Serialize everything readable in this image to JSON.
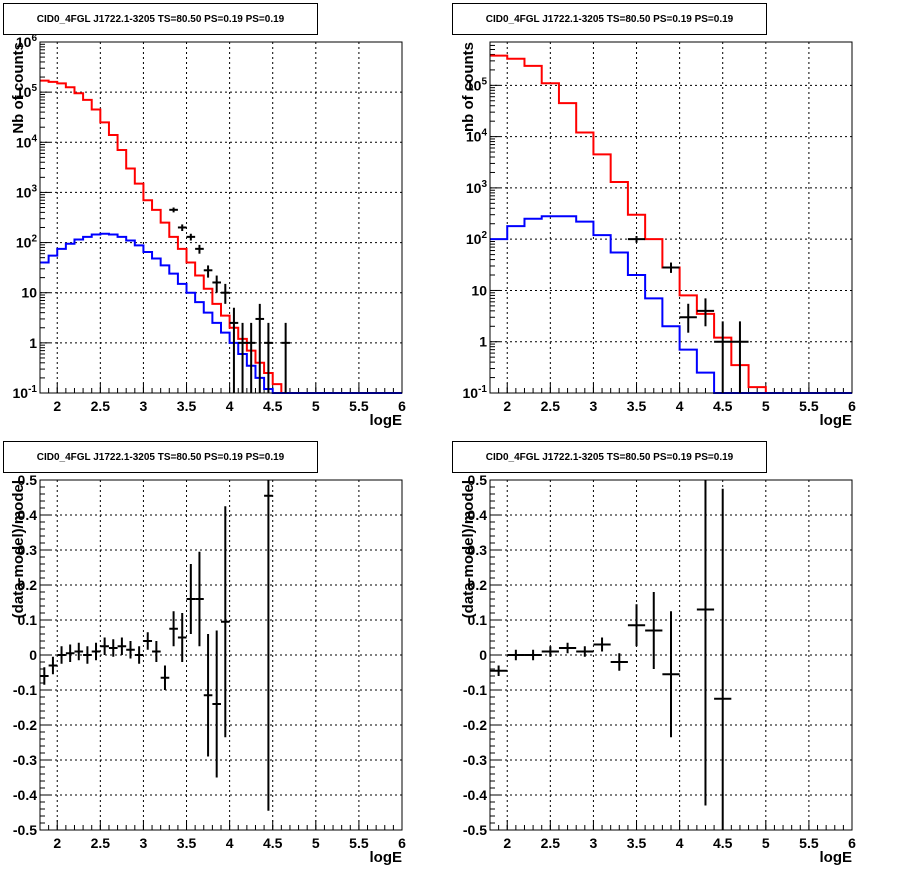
{
  "chart_data": [
    {
      "type": "line",
      "title": "CID0_4FGL J1722.1-3205 TS=80.50 PS=0.19 PS=0.19",
      "xlabel": "logE",
      "ylabel": "Nb of counts",
      "xlim": [
        1.8,
        6
      ],
      "ylim": [
        0.1,
        1000000
      ],
      "yscale": "log",
      "grid": true,
      "x_ticks": [
        "2",
        "2.5",
        "3",
        "3.5",
        "4",
        "4.5",
        "5",
        "5.5",
        "6"
      ],
      "y_ticks": [
        "10^-1",
        "1",
        "10",
        "10^2",
        "10^3",
        "10^4",
        "10^5",
        "10^6"
      ],
      "bin_width": 0.1,
      "series": [
        {
          "color": "#ff0000",
          "x": [
            1.8,
            1.9,
            2.0,
            2.1,
            2.2,
            2.3,
            2.4,
            2.5,
            2.6,
            2.7,
            2.8,
            2.9,
            3.0,
            3.1,
            3.2,
            3.3,
            3.4,
            3.5,
            3.6,
            3.7,
            3.8,
            3.9,
            4.0,
            4.1,
            4.2,
            4.3,
            4.4,
            4.5,
            4.6,
            4.7,
            4.8,
            4.9,
            5.0,
            5.1,
            5.2,
            5.3,
            5.4,
            5.5,
            5.6,
            5.7,
            5.8,
            5.9
          ],
          "values": [
            170000,
            160000,
            150000,
            125000,
            95000,
            70000,
            45000,
            25000,
            14000,
            7000,
            3000,
            1500,
            700,
            450,
            250,
            130,
            75,
            40,
            22,
            12,
            6,
            3.5,
            2,
            1.2,
            0.7,
            0.4,
            0.25,
            0.15,
            0.1,
            0.1,
            0.1,
            0.1,
            0.1,
            0.1,
            0.1,
            0.1,
            0.1,
            0.1,
            0.1,
            0.1,
            0.1,
            0.1
          ]
        },
        {
          "color": "#0000ff",
          "x": [
            1.8,
            1.9,
            2.0,
            2.1,
            2.2,
            2.3,
            2.4,
            2.5,
            2.6,
            2.7,
            2.8,
            2.9,
            3.0,
            3.1,
            3.2,
            3.3,
            3.4,
            3.5,
            3.6,
            3.7,
            3.8,
            3.9,
            4.0,
            4.1,
            4.2,
            4.3,
            4.4,
            4.5,
            4.6,
            4.7,
            4.8,
            4.9,
            5.0,
            5.1,
            5.2,
            5.3,
            5.4,
            5.5,
            5.6,
            5.7,
            5.8,
            5.9
          ],
          "values": [
            40,
            55,
            75,
            95,
            115,
            130,
            145,
            150,
            145,
            130,
            110,
            88,
            65,
            48,
            35,
            24,
            15,
            10,
            6.5,
            4,
            2.5,
            1.6,
            1,
            0.6,
            0.35,
            0.2,
            0.12,
            0.1,
            0.1,
            0.1,
            0.1,
            0.1,
            0.1,
            0.1,
            0.1,
            0.1,
            0.1,
            0.1,
            0.1,
            0.1,
            0.1,
            0.1
          ]
        },
        {
          "type": "errorbar",
          "color": "#000000",
          "x": [
            3.35,
            3.45,
            3.55,
            3.65,
            3.75,
            3.85,
            3.95,
            4.05,
            4.15,
            4.25,
            4.35,
            4.45,
            4.65
          ],
          "values": [
            450,
            200,
            130,
            75,
            28,
            16,
            10,
            2.5,
            1,
            1,
            3,
            1,
            1
          ],
          "err_low": [
            400,
            170,
            110,
            60,
            20,
            10,
            6,
            0.1,
            0.1,
            0.1,
            0.1,
            0.1,
            0.1
          ],
          "err_high": [
            500,
            230,
            150,
            90,
            35,
            22,
            15,
            5,
            2.5,
            2.5,
            6,
            2.5,
            2.5
          ]
        }
      ]
    },
    {
      "type": "line",
      "title": "CID0_4FGL J1722.1-3205 TS=80.50 PS=0.19 PS=0.19",
      "xlabel": "logE",
      "ylabel": "nb of counts",
      "xlim": [
        1.8,
        6
      ],
      "ylim": [
        0.1,
        700000
      ],
      "yscale": "log",
      "grid": true,
      "x_ticks": [
        "2",
        "2.5",
        "3",
        "3.5",
        "4",
        "4.5",
        "5",
        "5.5",
        "6"
      ],
      "y_ticks": [
        "10^-1",
        "1",
        "10",
        "10^2",
        "10^3",
        "10^4",
        "10^5"
      ],
      "bin_width": 0.2,
      "series": [
        {
          "color": "#ff0000",
          "x": [
            1.8,
            2.0,
            2.2,
            2.4,
            2.6,
            2.8,
            3.0,
            3.2,
            3.4,
            3.6,
            3.8,
            4.0,
            4.2,
            4.4,
            4.6,
            4.8,
            5.0,
            5.2,
            5.4,
            5.6,
            5.8
          ],
          "values": [
            380000,
            330000,
            240000,
            110000,
            45000,
            12000,
            4500,
            1300,
            300,
            100,
            28,
            8,
            3.5,
            1.2,
            0.35,
            0.13,
            0.1,
            0.1,
            0.1,
            0.1,
            0.1
          ]
        },
        {
          "color": "#0000ff",
          "x": [
            1.8,
            2.0,
            2.2,
            2.4,
            2.6,
            2.8,
            3.0,
            3.2,
            3.4,
            3.6,
            3.8,
            4.0,
            4.2,
            4.4,
            4.6,
            4.8,
            5.0,
            5.2,
            5.4,
            5.6,
            5.8
          ],
          "values": [
            100,
            180,
            250,
            280,
            280,
            220,
            120,
            55,
            20,
            7,
            2,
            0.7,
            0.25,
            0.1,
            0.1,
            0.1,
            0.1,
            0.1,
            0.1,
            0.1,
            0.1
          ]
        },
        {
          "type": "errorbar",
          "color": "#000000",
          "x": [
            3.5,
            3.9,
            4.1,
            4.3,
            4.5,
            4.7
          ],
          "values": [
            100,
            28,
            3,
            4,
            1,
            1
          ],
          "err_low": [
            85,
            22,
            1.5,
            2,
            0.1,
            0.1
          ],
          "err_high": [
            115,
            35,
            5.5,
            7,
            2.5,
            2.5
          ]
        }
      ]
    },
    {
      "type": "scatter",
      "title": "CID0_4FGL J1722.1-3205 TS=80.50 PS=0.19 PS=0.19",
      "xlabel": "logE",
      "ylabel": "(data-model)/model",
      "xlim": [
        1.8,
        6
      ],
      "ylim": [
        -0.5,
        0.5
      ],
      "grid": true,
      "x_ticks": [
        "2",
        "2.5",
        "3",
        "3.5",
        "4",
        "4.5",
        "5",
        "5.5",
        "6"
      ],
      "y_ticks": [
        "-0.5",
        "-0.4",
        "-0.3",
        "-0.2",
        "-0.1",
        "0",
        "0.1",
        "0.2",
        "0.3",
        "0.4",
        "0.5"
      ],
      "series": [
        {
          "type": "errorbar",
          "color": "#000000",
          "x": [
            1.85,
            1.95,
            2.05,
            2.15,
            2.25,
            2.35,
            2.45,
            2.55,
            2.65,
            2.75,
            2.85,
            2.95,
            3.05,
            3.15,
            3.25,
            3.35,
            3.45,
            3.55,
            3.65,
            3.75,
            3.85,
            3.95,
            4.45
          ],
          "values": [
            -0.06,
            -0.03,
            0.0,
            0.005,
            0.01,
            0.0,
            0.01,
            0.025,
            0.02,
            0.025,
            0.015,
            0.0,
            0.04,
            0.01,
            -0.065,
            0.075,
            0.05,
            0.16,
            0.16,
            -0.115,
            -0.14,
            0.095,
            0.455
          ],
          "err": [
            0.025,
            0.025,
            0.025,
            0.025,
            0.025,
            0.025,
            0.025,
            0.025,
            0.025,
            0.025,
            0.025,
            0.025,
            0.025,
            0.03,
            0.035,
            0.05,
            0.07,
            0.1,
            0.135,
            0.175,
            0.21,
            0.33,
            0.9
          ],
          "xerr": 0.05
        }
      ]
    },
    {
      "type": "scatter",
      "title": "CID0_4FGL J1722.1-3205 TS=80.50 PS=0.19 PS=0.19",
      "xlabel": "logE",
      "ylabel": "(data-model)/model",
      "xlim": [
        1.8,
        6
      ],
      "ylim": [
        -0.5,
        0.5
      ],
      "grid": true,
      "x_ticks": [
        "2",
        "2.5",
        "3",
        "3.5",
        "4",
        "4.5",
        "5",
        "5.5",
        "6"
      ],
      "y_ticks": [
        "-0.5",
        "-0.4",
        "-0.3",
        "-0.2",
        "-0.1",
        "0",
        "0.1",
        "0.2",
        "0.3",
        "0.4",
        "0.5"
      ],
      "series": [
        {
          "type": "errorbar",
          "color": "#000000",
          "x": [
            1.9,
            2.1,
            2.3,
            2.5,
            2.7,
            2.9,
            3.1,
            3.3,
            3.5,
            3.7,
            3.9,
            4.3,
            4.5
          ],
          "values": [
            -0.045,
            0.0,
            0.0,
            0.01,
            0.02,
            0.01,
            0.03,
            -0.02,
            0.085,
            0.07,
            -0.055,
            0.13,
            -0.125
          ],
          "err": [
            0.015,
            0.015,
            0.015,
            0.015,
            0.015,
            0.015,
            0.02,
            0.025,
            0.06,
            0.11,
            0.18,
            0.56,
            0.6
          ],
          "xerr": 0.1
        }
      ]
    }
  ]
}
